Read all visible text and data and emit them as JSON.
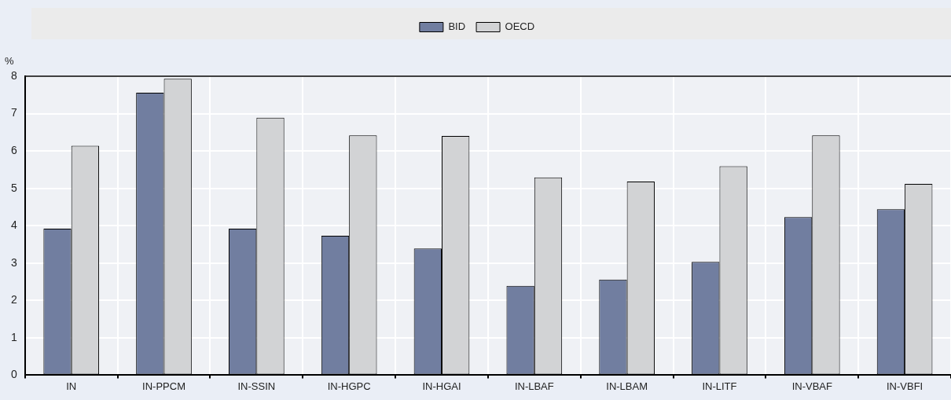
{
  "chart_data": {
    "type": "bar",
    "ylabel": "%",
    "categories": [
      "IN",
      "IN-PPCM",
      "IN-SSIN",
      "IN-HGPC",
      "IN-HGAI",
      "IN-LBAF",
      "IN-LBAM",
      "IN-LITF",
      "IN-VBAF",
      "IN-VBFI"
    ],
    "series": [
      {
        "name": "BID",
        "color": "#717ea0",
        "values": [
          3.92,
          7.56,
          3.92,
          3.73,
          3.39,
          2.39,
          2.56,
          3.03,
          4.23,
          4.44
        ]
      },
      {
        "name": "OECD",
        "color": "#d2d3d5",
        "values": [
          6.14,
          7.93,
          6.89,
          6.42,
          6.4,
          5.29,
          5.18,
          5.59,
          6.42,
          5.12
        ]
      }
    ],
    "ylim": [
      0,
      8
    ],
    "yticks": [
      0,
      1,
      2,
      3,
      4,
      5,
      6,
      7,
      8
    ],
    "grid": true,
    "legend": "top"
  }
}
